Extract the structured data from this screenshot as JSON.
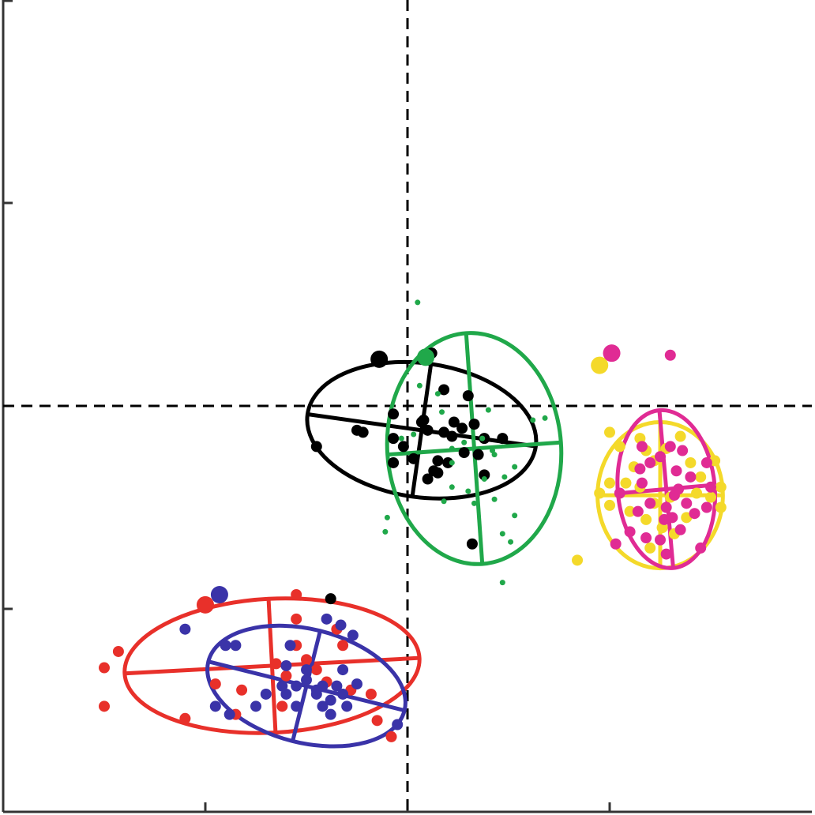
{
  "chart_data": {
    "type": "scatter",
    "title": "",
    "xlabel": "",
    "ylabel": "",
    "xlim": [
      -2,
      2
    ],
    "ylim": [
      -2,
      2
    ],
    "xticks": [
      -1,
      0,
      1
    ],
    "yticks": [
      -1,
      0,
      1
    ],
    "tick_labels_shown": false,
    "reference_lines": {
      "x": 0,
      "y": 0,
      "style": "dashed"
    },
    "series": [
      {
        "color": "#e8302a",
        "ellipse": {
          "center": [
            -0.67,
            -1.28
          ],
          "semi_axis_a": 0.73,
          "semi_axis_b": 0.33,
          "angle_deg": 3,
          "line_width": 5
        },
        "points": [
          [
            -1.0,
            -0.98,
            "L"
          ],
          [
            -0.55,
            -0.93
          ],
          [
            -1.43,
            -1.21
          ],
          [
            -1.5,
            -1.29
          ],
          [
            -1.5,
            -1.48
          ],
          [
            -1.1,
            -1.54
          ],
          [
            -0.95,
            -1.37
          ],
          [
            -0.82,
            -1.4
          ],
          [
            -0.65,
            -1.27
          ],
          [
            -0.6,
            -1.33
          ],
          [
            -0.55,
            -1.18
          ],
          [
            -0.45,
            -1.3
          ],
          [
            -0.4,
            -1.36
          ],
          [
            -0.5,
            -1.25
          ],
          [
            -0.35,
            -1.1
          ],
          [
            -0.28,
            -1.4
          ],
          [
            -0.18,
            -1.42
          ],
          [
            -0.15,
            -1.55
          ],
          [
            -0.08,
            -1.63
          ],
          [
            -0.62,
            -1.48
          ],
          [
            -0.85,
            -1.52
          ],
          [
            -0.32,
            -1.18
          ],
          [
            -0.55,
            -1.05
          ]
        ]
      },
      {
        "color": "#3a33a8",
        "ellipse": {
          "center": [
            -0.5,
            -1.38
          ],
          "semi_axis_a": 0.5,
          "semi_axis_b": 0.28,
          "angle_deg": -14,
          "line_width": 5
        },
        "points": [
          [
            -0.93,
            -0.93,
            "L"
          ],
          [
            -1.1,
            -1.1
          ],
          [
            -0.9,
            -1.18
          ],
          [
            -0.85,
            -1.18
          ],
          [
            -0.4,
            -1.05
          ],
          [
            -0.33,
            -1.08
          ],
          [
            -0.27,
            -1.13
          ],
          [
            -0.6,
            -1.28
          ],
          [
            -0.55,
            -1.38
          ],
          [
            -0.5,
            -1.35
          ],
          [
            -0.45,
            -1.42
          ],
          [
            -0.42,
            -1.48
          ],
          [
            -0.38,
            -1.45
          ],
          [
            -0.35,
            -1.38
          ],
          [
            -0.3,
            -1.48
          ],
          [
            -0.38,
            -1.52
          ],
          [
            -0.45,
            -1.4
          ],
          [
            -0.7,
            -1.42
          ],
          [
            -0.75,
            -1.48
          ],
          [
            -0.88,
            -1.52
          ],
          [
            -0.95,
            -1.48
          ],
          [
            -0.32,
            -1.3
          ],
          [
            -0.5,
            -1.3
          ],
          [
            -0.42,
            -1.38
          ],
          [
            -0.32,
            -1.42
          ],
          [
            -0.25,
            -1.37
          ],
          [
            -0.55,
            -1.48
          ],
          [
            -0.6,
            -1.42
          ],
          [
            -0.62,
            -1.38
          ],
          [
            -0.58,
            -1.18
          ],
          [
            -0.05,
            -1.57
          ]
        ]
      },
      {
        "color": "#000000",
        "ellipse": {
          "center": [
            0.07,
            -0.12
          ],
          "semi_axis_a": 0.57,
          "semi_axis_b": 0.33,
          "angle_deg": -8,
          "line_width": 5
        },
        "points": [
          [
            -0.14,
            0.23,
            "L"
          ],
          [
            0.12,
            0.26
          ],
          [
            -0.45,
            -0.2
          ],
          [
            -0.38,
            -0.95
          ],
          [
            -0.25,
            -0.12
          ],
          [
            -0.22,
            -0.13
          ],
          [
            -0.07,
            -0.16
          ],
          [
            -0.07,
            -0.04
          ],
          [
            -0.02,
            -0.2
          ],
          [
            0.08,
            -0.07
          ],
          [
            0.1,
            -0.12
          ],
          [
            0.18,
            -0.13
          ],
          [
            0.22,
            -0.15
          ],
          [
            0.27,
            -0.11
          ],
          [
            0.33,
            -0.09
          ],
          [
            0.35,
            -0.24
          ],
          [
            0.28,
            -0.23
          ],
          [
            0.15,
            -0.27
          ],
          [
            0.13,
            -0.32
          ],
          [
            0.03,
            -0.26
          ],
          [
            -0.07,
            -0.28
          ],
          [
            0.1,
            -0.36
          ],
          [
            0.15,
            -0.33
          ],
          [
            0.07,
            -0.08
          ],
          [
            0.2,
            -0.28
          ],
          [
            0.23,
            -0.08
          ],
          [
            0.18,
            0.08
          ],
          [
            0.38,
            -0.16
          ],
          [
            0.47,
            -0.16
          ],
          [
            0.3,
            0.05
          ],
          [
            0.38,
            -0.34
          ],
          [
            0.32,
            -0.68
          ]
        ]
      },
      {
        "color": "#20a84a",
        "ellipse": {
          "center": [
            0.33,
            -0.21
          ],
          "semi_axis_a": 0.43,
          "semi_axis_b": 0.57,
          "angle_deg": 4,
          "line_width": 5
        },
        "points": [
          [
            0.09,
            0.24,
            "L"
          ],
          [
            0.05,
            0.51,
            "s"
          ],
          [
            0.06,
            0.1,
            "s"
          ],
          [
            0.15,
            0.06,
            "s"
          ],
          [
            0.17,
            -0.03,
            "s"
          ],
          [
            0.03,
            -0.14,
            "s"
          ],
          [
            -0.03,
            -0.16,
            "s"
          ],
          [
            0.22,
            -0.21,
            "s"
          ],
          [
            0.28,
            -0.18,
            "s"
          ],
          [
            0.42,
            -0.22,
            "s"
          ],
          [
            0.43,
            -0.24,
            "s"
          ],
          [
            0.37,
            -0.16,
            "s"
          ],
          [
            0.38,
            -0.36,
            "s"
          ],
          [
            0.3,
            -0.42,
            "s"
          ],
          [
            0.22,
            -0.4,
            "s"
          ],
          [
            0.18,
            -0.47,
            "s"
          ],
          [
            0.33,
            -0.48,
            "s"
          ],
          [
            0.53,
            -0.3,
            "s"
          ],
          [
            0.48,
            -0.35,
            "s"
          ],
          [
            0.43,
            -0.46,
            "s"
          ],
          [
            0.47,
            -0.63,
            "s"
          ],
          [
            0.53,
            -0.54,
            "s"
          ],
          [
            0.62,
            -0.07,
            "s"
          ],
          [
            0.68,
            -0.06,
            "s"
          ],
          [
            0.51,
            -0.67,
            "s"
          ],
          [
            -0.1,
            -0.55,
            "s"
          ],
          [
            -0.11,
            -0.62,
            "s"
          ],
          [
            0.4,
            -0.02,
            "s"
          ],
          [
            0.22,
            -0.28,
            "s"
          ],
          [
            0.47,
            -0.87,
            "s"
          ]
        ]
      },
      {
        "color": "#f4d92a",
        "ellipse": {
          "center": [
            1.25,
            -0.44
          ],
          "semi_axis_a": 0.31,
          "semi_axis_b": 0.36,
          "angle_deg": 0,
          "line_width": 5
        },
        "points": [
          [
            0.95,
            0.2,
            "L"
          ],
          [
            0.84,
            -0.76
          ],
          [
            1.0,
            -0.13
          ],
          [
            1.05,
            -0.2
          ],
          [
            1.15,
            -0.16
          ],
          [
            1.18,
            -0.22
          ],
          [
            1.22,
            -0.27
          ],
          [
            1.28,
            -0.21
          ],
          [
            1.35,
            -0.15
          ],
          [
            1.4,
            -0.28
          ],
          [
            1.45,
            -0.35
          ],
          [
            1.52,
            -0.27
          ],
          [
            1.55,
            -0.4
          ],
          [
            1.5,
            -0.45
          ],
          [
            1.43,
            -0.43
          ],
          [
            1.3,
            -0.45
          ],
          [
            1.22,
            -0.48
          ],
          [
            1.15,
            -0.4
          ],
          [
            1.08,
            -0.38
          ],
          [
            1.1,
            -0.52
          ],
          [
            1.18,
            -0.56
          ],
          [
            1.26,
            -0.6
          ],
          [
            1.32,
            -0.63
          ],
          [
            1.2,
            -0.7
          ],
          [
            1.0,
            -0.49
          ],
          [
            0.95,
            -0.43
          ],
          [
            1.38,
            -0.55
          ],
          [
            1.55,
            -0.5
          ],
          [
            1.0,
            -0.38
          ],
          [
            1.12,
            -0.3
          ]
        ]
      },
      {
        "color": "#e02b94",
        "ellipse": {
          "center": [
            1.28,
            -0.41
          ],
          "semi_axis_a": 0.24,
          "semi_axis_b": 0.39,
          "angle_deg": 5,
          "line_width": 5
        },
        "points": [
          [
            1.01,
            0.26,
            "L"
          ],
          [
            1.3,
            0.25
          ],
          [
            1.3,
            -0.2
          ],
          [
            1.33,
            -0.32
          ],
          [
            1.32,
            -0.44
          ],
          [
            1.42,
            -0.53
          ],
          [
            1.48,
            -0.5
          ],
          [
            1.45,
            -0.7
          ],
          [
            1.35,
            -0.61
          ],
          [
            1.25,
            -0.66
          ],
          [
            1.27,
            -0.56
          ],
          [
            1.2,
            -0.48
          ],
          [
            1.16,
            -0.38
          ],
          [
            1.14,
            -0.52
          ],
          [
            1.1,
            -0.62
          ],
          [
            1.18,
            -0.65
          ],
          [
            1.31,
            -0.55
          ],
          [
            1.4,
            -0.35
          ],
          [
            1.5,
            -0.4
          ],
          [
            1.48,
            -0.28
          ],
          [
            1.36,
            -0.22
          ],
          [
            1.25,
            -0.25
          ],
          [
            1.2,
            -0.28
          ],
          [
            1.15,
            -0.31
          ],
          [
            1.05,
            -0.43
          ],
          [
            1.03,
            -0.68
          ],
          [
            1.34,
            -0.41
          ],
          [
            1.28,
            -0.5
          ],
          [
            1.16,
            -0.2
          ],
          [
            1.38,
            -0.48
          ],
          [
            1.28,
            -0.73
          ]
        ]
      }
    ]
  }
}
